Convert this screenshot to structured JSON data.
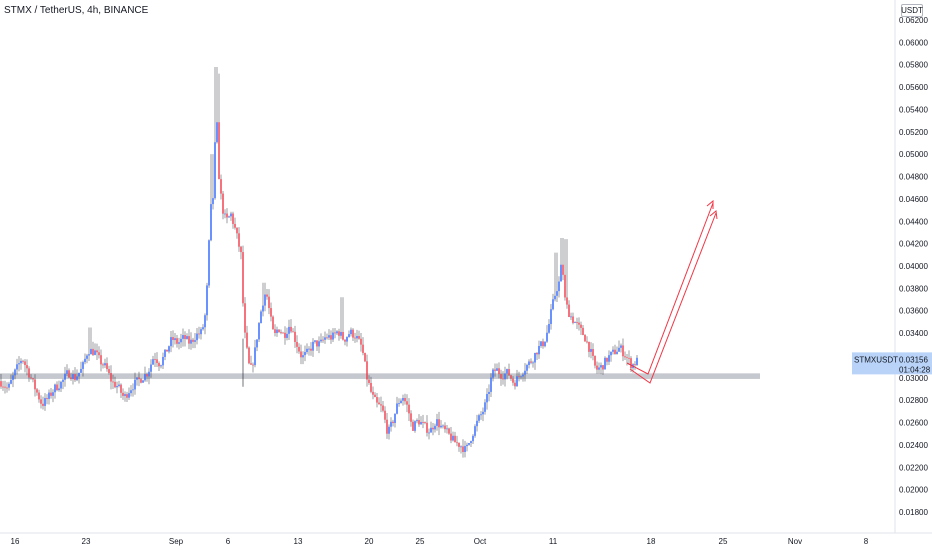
{
  "header": {
    "title": "STMX / TetherUS, 4h, BINANCE"
  },
  "price_scale": {
    "currency_label": "USDT"
  },
  "chart_data": {
    "type": "candlestick",
    "title": "STMX / TetherUS, 4h, BINANCE",
    "symbol": "STMXUSDT",
    "last_price": "0.03156",
    "countdown": "01:04:28",
    "y_ticks": [
      "0.06200",
      "0.06000",
      "0.05800",
      "0.05600",
      "0.05400",
      "0.05200",
      "0.05000",
      "0.04800",
      "0.04600",
      "0.04400",
      "0.04200",
      "0.04000",
      "0.03800",
      "0.03600",
      "0.03400",
      "0.03200",
      "0.03000",
      "0.02800",
      "0.02600",
      "0.02400",
      "0.02200",
      "0.02000",
      "0.01800"
    ],
    "ylim": [
      0.0173,
      0.0632
    ],
    "x_ticks": [
      "16",
      "23",
      "Sep",
      "6",
      "13",
      "20",
      "25",
      "Oct",
      "11",
      "18",
      "25",
      "Nov",
      "8"
    ],
    "support_zone": [
      0.0299,
      0.0304
    ],
    "colors": {
      "up": "#2962ff",
      "down": "#f23645",
      "projection": "#f23645",
      "zone": "#b2b5be",
      "label_bg": "#b8d3f7"
    },
    "price_path": [
      [
        0,
        0.0297
      ],
      [
        8,
        0.029
      ],
      [
        15,
        0.0305
      ],
      [
        22,
        0.0318
      ],
      [
        28,
        0.0306
      ],
      [
        35,
        0.0291
      ],
      [
        42,
        0.0276
      ],
      [
        48,
        0.0282
      ],
      [
        55,
        0.0291
      ],
      [
        62,
        0.0296
      ],
      [
        68,
        0.0305
      ],
      [
        75,
        0.03
      ],
      [
        82,
        0.0308
      ],
      [
        88,
        0.0325
      ],
      [
        95,
        0.0323
      ],
      [
        100,
        0.0315
      ],
      [
        106,
        0.0309
      ],
      [
        112,
        0.0296
      ],
      [
        118,
        0.0292
      ],
      [
        124,
        0.0282
      ],
      [
        130,
        0.029
      ],
      [
        136,
        0.0296
      ],
      [
        142,
        0.03
      ],
      [
        148,
        0.0305
      ],
      [
        154,
        0.032
      ],
      [
        160,
        0.0312
      ],
      [
        166,
        0.0323
      ],
      [
        172,
        0.0335
      ],
      [
        178,
        0.0331
      ],
      [
        184,
        0.0336
      ],
      [
        190,
        0.0331
      ],
      [
        196,
        0.0338
      ],
      [
        202,
        0.0341
      ],
      [
        206,
        0.036
      ],
      [
        209,
        0.042
      ],
      [
        212,
        0.0468
      ],
      [
        214,
        0.0455
      ],
      [
        216,
        0.056
      ],
      [
        218,
        0.049
      ],
      [
        222,
        0.0453
      ],
      [
        226,
        0.044
      ],
      [
        231,
        0.0446
      ],
      [
        236,
        0.043
      ],
      [
        241,
        0.041
      ],
      [
        244,
        0.0345
      ],
      [
        246,
        0.033
      ],
      [
        250,
        0.0305
      ],
      [
        254,
        0.0318
      ],
      [
        258,
        0.0343
      ],
      [
        262,
        0.0365
      ],
      [
        266,
        0.0378
      ],
      [
        270,
        0.0356
      ],
      [
        274,
        0.0336
      ],
      [
        278,
        0.0345
      ],
      [
        284,
        0.0338
      ],
      [
        290,
        0.0348
      ],
      [
        296,
        0.0332
      ],
      [
        302,
        0.0318
      ],
      [
        308,
        0.0323
      ],
      [
        314,
        0.0331
      ],
      [
        320,
        0.033
      ],
      [
        326,
        0.0337
      ],
      [
        332,
        0.0336
      ],
      [
        338,
        0.0342
      ],
      [
        344,
        0.0334
      ],
      [
        350,
        0.0341
      ],
      [
        356,
        0.0337
      ],
      [
        362,
        0.0327
      ],
      [
        367,
        0.03
      ],
      [
        372,
        0.0284
      ],
      [
        377,
        0.0276
      ],
      [
        382,
        0.0273
      ],
      [
        388,
        0.025
      ],
      [
        393,
        0.0262
      ],
      [
        398,
        0.0278
      ],
      [
        403,
        0.0283
      ],
      [
        408,
        0.0273
      ],
      [
        412,
        0.0255
      ],
      [
        418,
        0.0262
      ],
      [
        424,
        0.0257
      ],
      [
        430,
        0.0252
      ],
      [
        436,
        0.0262
      ],
      [
        442,
        0.0255
      ],
      [
        448,
        0.025
      ],
      [
        454,
        0.0243
      ],
      [
        460,
        0.024
      ],
      [
        466,
        0.0235
      ],
      [
        472,
        0.0249
      ],
      [
        478,
        0.0262
      ],
      [
        484,
        0.0272
      ],
      [
        488,
        0.0285
      ],
      [
        492,
        0.0303
      ],
      [
        496,
        0.0308
      ],
      [
        502,
        0.0302
      ],
      [
        508,
        0.0305
      ],
      [
        514,
        0.0295
      ],
      [
        520,
        0.0303
      ],
      [
        526,
        0.031
      ],
      [
        532,
        0.0316
      ],
      [
        538,
        0.0326
      ],
      [
        544,
        0.0332
      ],
      [
        548,
        0.0343
      ],
      [
        552,
        0.0363
      ],
      [
        556,
        0.0378
      ],
      [
        559,
        0.0385
      ],
      [
        562,
        0.0405
      ],
      [
        565,
        0.037
      ],
      [
        568,
        0.036
      ],
      [
        572,
        0.0353
      ],
      [
        578,
        0.0346
      ],
      [
        584,
        0.0338
      ],
      [
        590,
        0.0325
      ],
      [
        596,
        0.0307
      ],
      [
        602,
        0.031
      ],
      [
        608,
        0.0318
      ],
      [
        614,
        0.0323
      ],
      [
        620,
        0.0327
      ],
      [
        626,
        0.0319
      ],
      [
        632,
        0.0311
      ],
      [
        638,
        0.0316
      ]
    ]
  }
}
